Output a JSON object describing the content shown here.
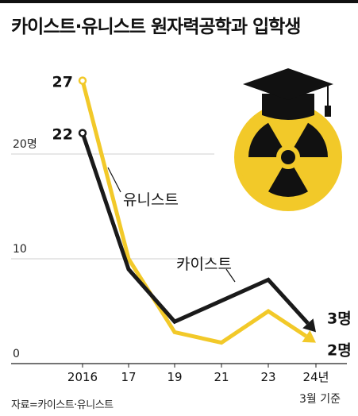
{
  "title": "카이스트·유니스트 원자력공학과 입학생",
  "source": "자료=카이스트·유니스트",
  "chart_data": {
    "type": "line",
    "title": "카이스트·유니스트 원자력공학과 입학생",
    "x_tick_labels": [
      "2016",
      "17",
      "19",
      "21",
      "23",
      "24년"
    ],
    "x_sublabel": "3월 기준",
    "y_tick_labels": [
      "20명",
      "10",
      "0"
    ],
    "y_ticks": [
      20,
      10,
      0
    ],
    "ylim": [
      0,
      30
    ],
    "grid": true,
    "series": [
      {
        "name": "유니스트",
        "color": "#f2c929",
        "x": [
          "2016",
          "17",
          "19",
          "21",
          "23",
          "24년"
        ],
        "values": [
          27,
          10,
          3,
          2,
          5,
          2
        ],
        "start_label": "27",
        "end_label": "2명"
      },
      {
        "name": "카이스트",
        "color": "#1a1a1a",
        "x": [
          "2016",
          "17",
          "19",
          "21",
          "23",
          "24년"
        ],
        "values": [
          22,
          9,
          4,
          6,
          8,
          3
        ],
        "start_label": "22",
        "end_label": "3명"
      }
    ]
  },
  "icon": "graduation-cap-radiation-symbol-icon"
}
